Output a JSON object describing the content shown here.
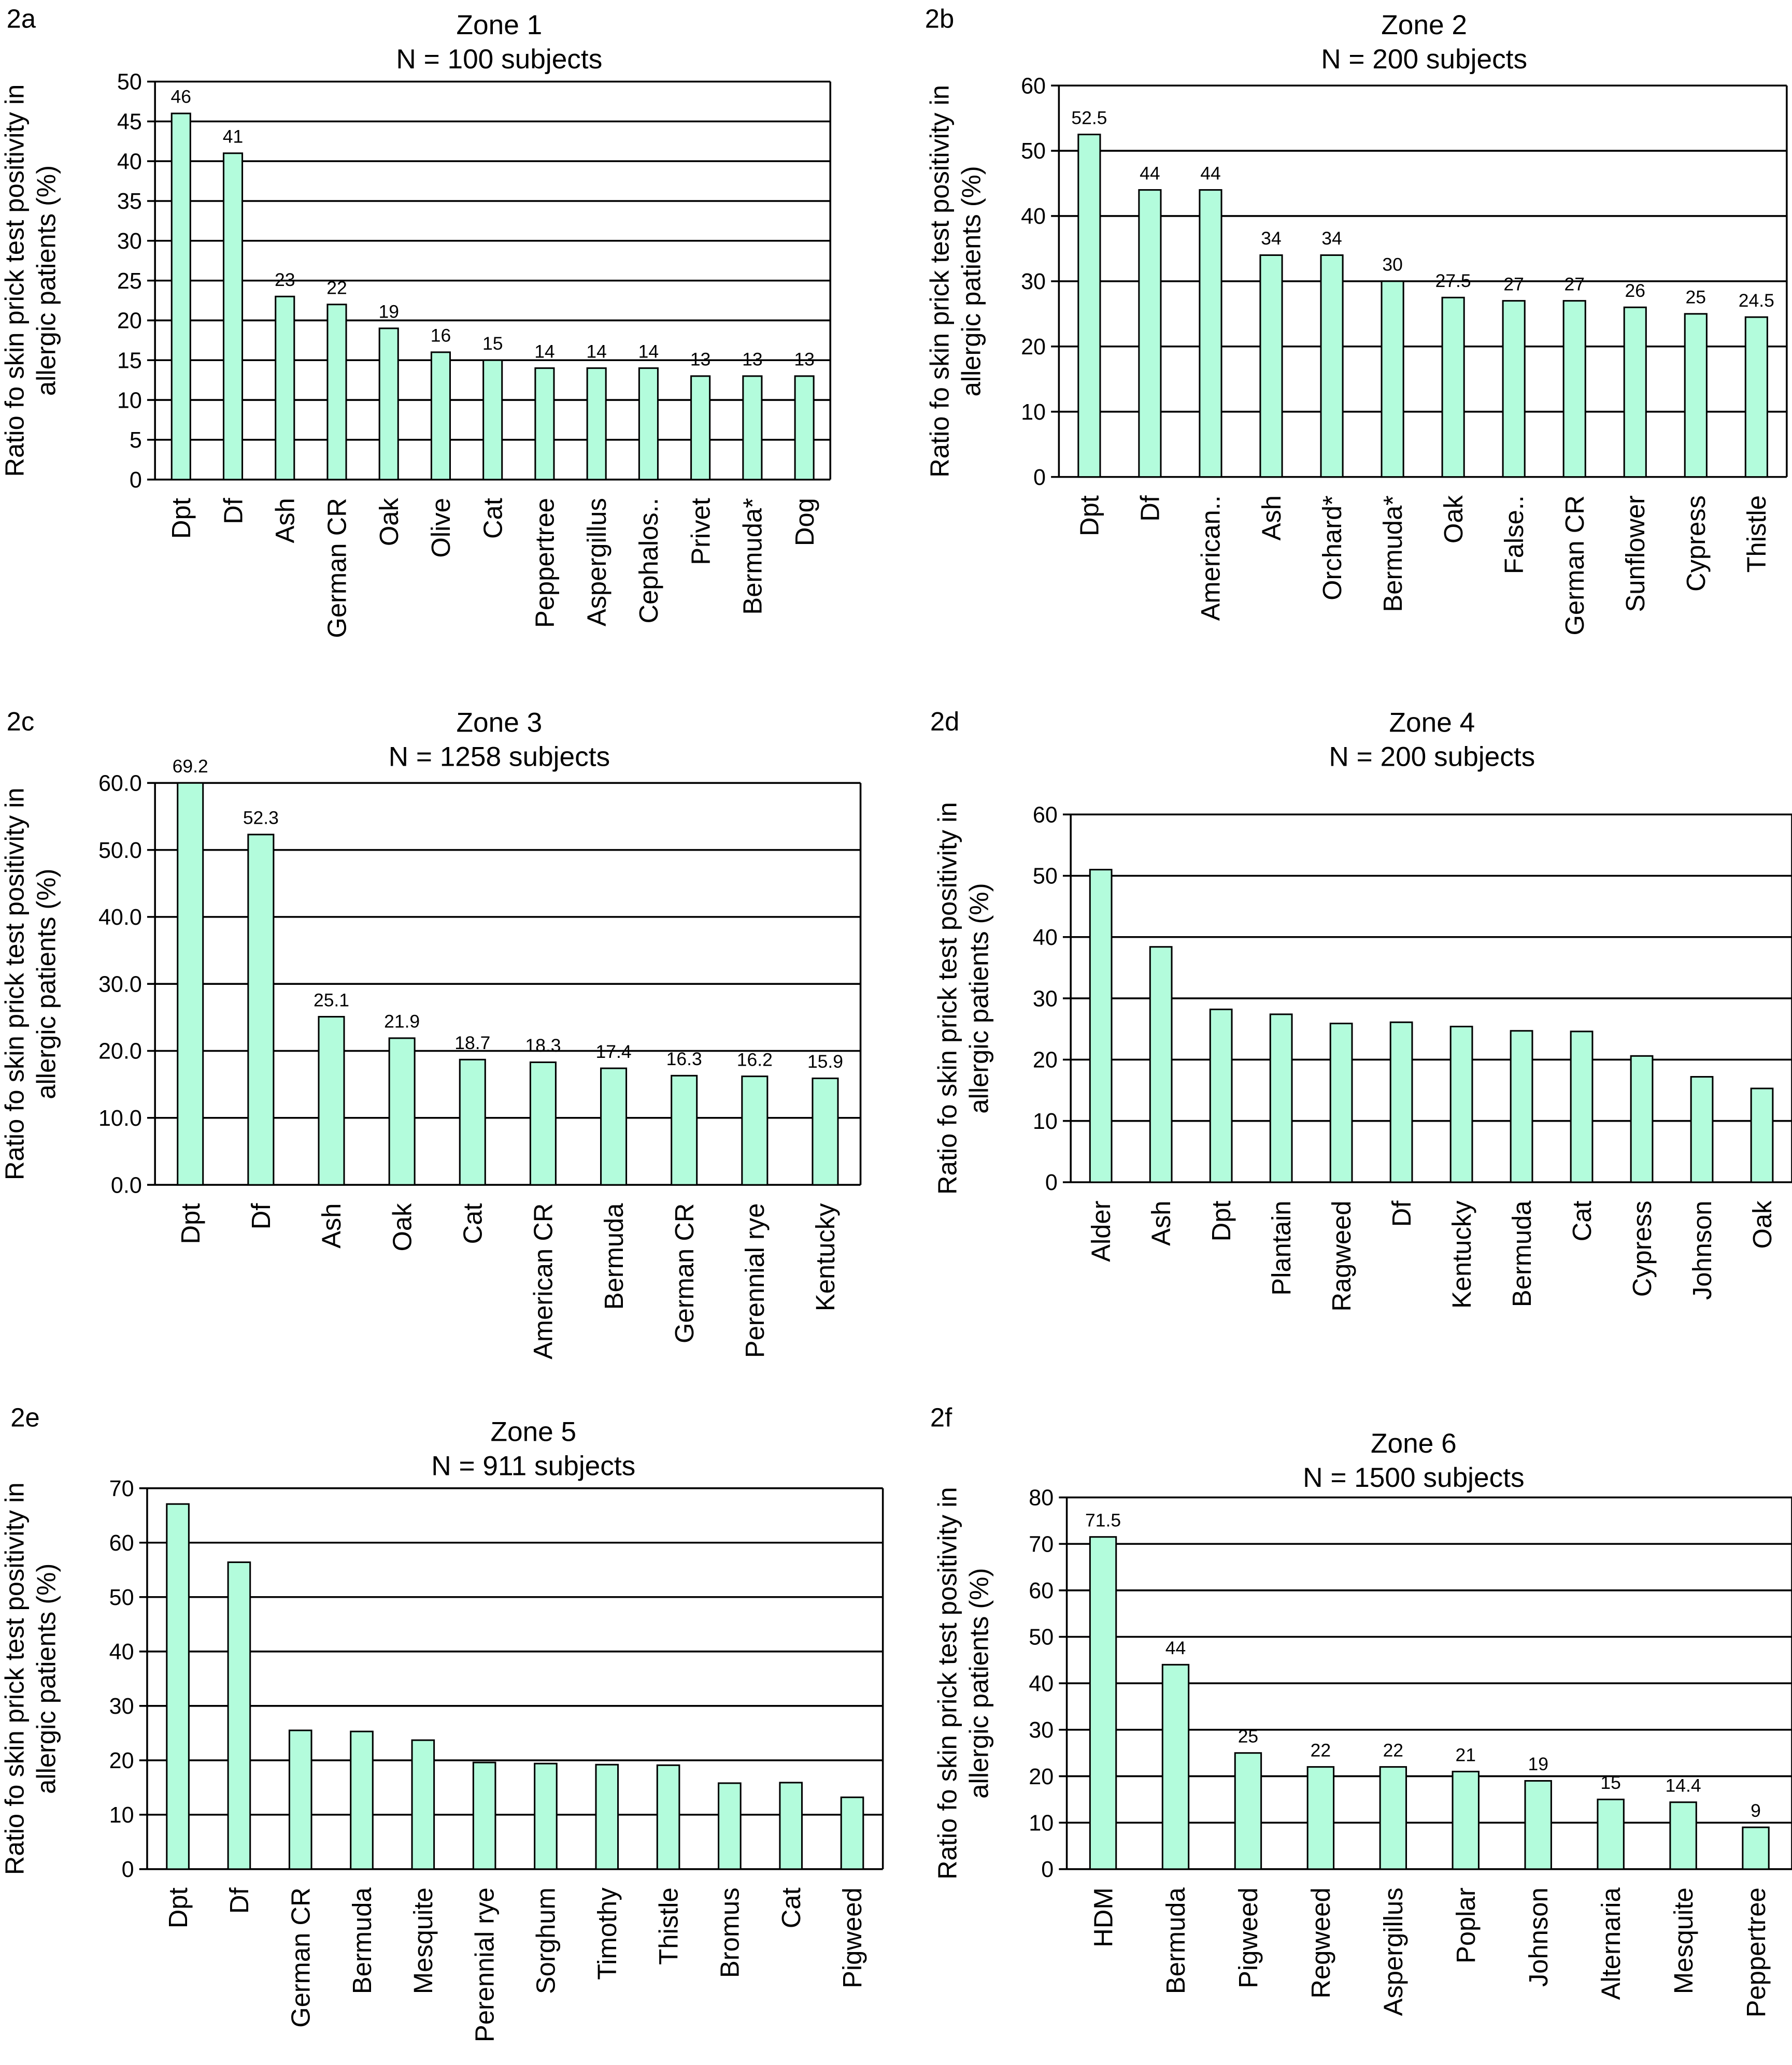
{
  "colors": {
    "bar_fill": "#b3fcdc",
    "bar_edge": "#000000",
    "grid": "#000000"
  },
  "ylabel": [
    "Ratio fo skin prick test positivity in",
    "allergic patients (%)"
  ],
  "chart_data": [
    {
      "panel": "2a",
      "type": "bar",
      "title": [
        "Zone 1",
        "N = 100 subjects"
      ],
      "ylabel": "Ratio fo skin prick test positivity in allergic patients (%)",
      "ylim": [
        0,
        50
      ],
      "yticks": [
        "0",
        "5",
        "10",
        "15",
        "20",
        "25",
        "30",
        "35",
        "40",
        "45",
        "50"
      ],
      "grid": true,
      "categories": [
        "Dpt",
        "Df",
        "Ash",
        "German CR",
        "Oak",
        "Olive",
        "Cat",
        "Peppertree",
        "Aspergillus",
        "Cephalos..",
        "Privet",
        "Bermuda*",
        "Dog"
      ],
      "values": [
        46,
        41,
        23,
        22,
        19,
        16,
        15,
        14,
        14,
        14,
        13,
        13,
        13
      ],
      "data_labels": [
        "46",
        "41",
        "23",
        "22",
        "19",
        "16",
        "15",
        "14",
        "14",
        "14",
        "13",
        "13",
        "13"
      ]
    },
    {
      "panel": "2b",
      "type": "bar",
      "title": [
        "Zone 2",
        "N = 200 subjects"
      ],
      "ylabel": "Ratio fo skin prick test positivity in allergic patients (%)",
      "ylim": [
        0,
        60
      ],
      "yticks": [
        "0",
        "10",
        "20",
        "30",
        "40",
        "50",
        "60"
      ],
      "grid": true,
      "categories": [
        "Dpt",
        "Df",
        "American..",
        "Ash",
        "Orchard*",
        "Bermuda*",
        "Oak",
        "False..",
        "German CR",
        "Sunflower",
        "Cypress",
        "Thistle"
      ],
      "values": [
        52.5,
        44,
        44,
        34,
        34,
        30,
        27.5,
        27,
        27,
        26,
        25,
        24.5
      ],
      "data_labels": [
        "52.5",
        "44",
        "44",
        "34",
        "34",
        "30",
        "27.5",
        "27",
        "27",
        "26",
        "25",
        "24.5"
      ]
    },
    {
      "panel": "2c",
      "type": "bar",
      "title": [
        "Zone 3",
        "N = 1258 subjects"
      ],
      "ylabel": "Ratio fo skin prick test positivity in allergic patients (%)",
      "ylim": [
        0,
        60
      ],
      "yticks": [
        "0.0",
        "10.0",
        "20.0",
        "30.0",
        "40.0",
        "50.0",
        "60.0"
      ],
      "grid": true,
      "categories": [
        "Dpt",
        "Df",
        "Ash",
        "Oak",
        "Cat",
        "American CR",
        "Bermuda",
        "German CR",
        "Perennial rye",
        "Kentucky"
      ],
      "values": [
        69.2,
        52.3,
        25.1,
        21.9,
        18.7,
        18.3,
        17.4,
        16.3,
        16.2,
        15.9
      ],
      "data_labels": [
        "69.2",
        "52.3",
        "25.1",
        "21.9",
        "18.7",
        "18.3",
        "17.4",
        "16.3",
        "16.2",
        "15.9"
      ]
    },
    {
      "panel": "2d",
      "type": "bar",
      "title": [
        "Zone 4",
        "N = 200 subjects"
      ],
      "ylabel": "Ratio fo skin prick test positivity in allergic patients (%)",
      "ylim": [
        0,
        60
      ],
      "yticks": [
        "0",
        "10",
        "20",
        "30",
        "40",
        "50",
        "60"
      ],
      "grid": true,
      "categories": [
        "Alder",
        "Ash",
        "Dpt",
        "Plantain",
        "Ragweed",
        "Df",
        "Kentucky",
        "Bermuda",
        "Cat",
        "Cypress",
        "Johnson",
        "Oak"
      ],
      "values": [
        51,
        38.4,
        28.2,
        27.4,
        25.9,
        26.1,
        25.4,
        24.7,
        24.6,
        20.6,
        17.2,
        15.3
      ],
      "data_labels": []
    },
    {
      "panel": "2e",
      "type": "bar",
      "title": [
        "Zone 5",
        "N = 911 subjects"
      ],
      "ylabel": "Ratio fo skin prick test positivity in allergic patients (%)",
      "ylim": [
        0,
        70
      ],
      "yticks": [
        "0",
        "10",
        "20",
        "30",
        "40",
        "50",
        "60",
        "70"
      ],
      "grid": true,
      "categories": [
        "Dpt",
        "Df",
        "German CR",
        "Bermuda",
        "Mesquite",
        "Perennial rye",
        "Sorghum",
        "Timothy",
        "Thistle",
        "Bromus",
        "Cat",
        "Pigweed"
      ],
      "values": [
        67.1,
        56.4,
        25.5,
        25.3,
        23.7,
        19.6,
        19.4,
        19.2,
        19.1,
        15.8,
        15.9,
        13.2
      ],
      "data_labels": []
    },
    {
      "panel": "2f",
      "type": "bar",
      "title": [
        "Zone 6",
        "N = 1500 subjects"
      ],
      "ylabel": "Ratio fo skin prick test positivity in allergic patients (%)",
      "ylim": [
        0,
        80
      ],
      "yticks": [
        "0",
        "10",
        "20",
        "30",
        "40",
        "50",
        "60",
        "70",
        "80"
      ],
      "grid": true,
      "categories": [
        "HDM",
        "Bermuda",
        "Pigweed",
        "Regweed",
        "Aspergillus",
        "Poplar",
        "Johnson",
        "Alternaria",
        "Mesquite",
        "Peppertree"
      ],
      "values": [
        71.5,
        44,
        25,
        22,
        22,
        21,
        19,
        15,
        14.4,
        9
      ],
      "data_labels": [
        "71.5",
        "44",
        "25",
        "22",
        "22",
        "21",
        "19",
        "15",
        "14.4",
        "9"
      ]
    }
  ]
}
